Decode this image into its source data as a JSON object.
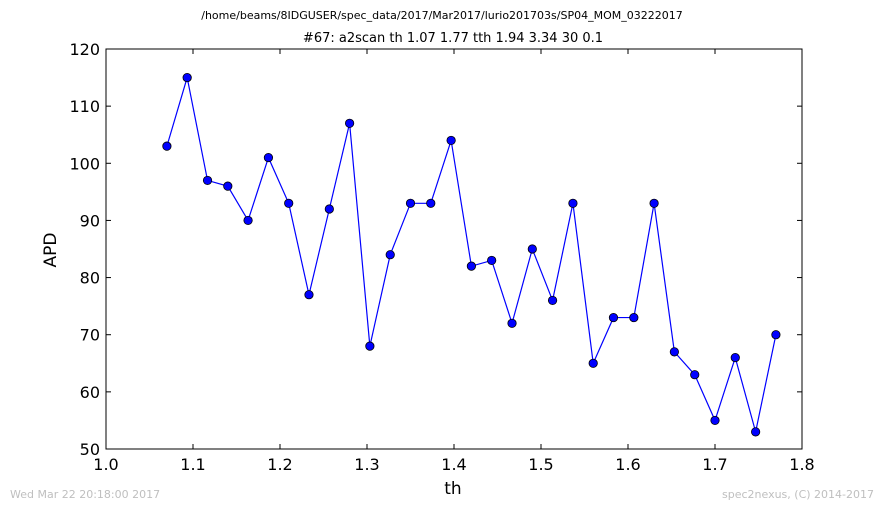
{
  "header": {
    "suptitle": "/home/beams/8IDGUSER/spec_data/2017/Mar2017/lurio201703s/SP04_MOM_03222017"
  },
  "footer": {
    "timestamp": "Wed Mar 22 20:18:00 2017",
    "credit": "spec2nexus, (C) 2014-2017"
  },
  "chart_data": {
    "type": "line",
    "title": "#67: a2scan  th 1.07 1.77  tth 1.94 3.34  30 0.1",
    "xlabel": "th",
    "ylabel": "APD",
    "xlim": [
      1.0,
      1.8
    ],
    "ylim": [
      50,
      120
    ],
    "xticks": [
      "1.0",
      "1.1",
      "1.2",
      "1.3",
      "1.4",
      "1.5",
      "1.6",
      "1.7",
      "1.8"
    ],
    "yticks": [
      "50",
      "60",
      "70",
      "80",
      "90",
      "100",
      "110",
      "120"
    ],
    "grid": false,
    "colors": {
      "line": "#0000ff",
      "marker": "#0000ff"
    },
    "series": [
      {
        "x": [
          1.07,
          1.0933,
          1.1167,
          1.14,
          1.1633,
          1.1867,
          1.21,
          1.2333,
          1.2567,
          1.28,
          1.3033,
          1.3267,
          1.35,
          1.3733,
          1.3967,
          1.42,
          1.4433,
          1.4667,
          1.49,
          1.5133,
          1.5367,
          1.56,
          1.5833,
          1.6067,
          1.63,
          1.6533,
          1.6767,
          1.7,
          1.7233,
          1.7467,
          1.77
        ],
        "y": [
          103,
          115,
          97,
          96,
          90,
          101,
          93,
          77,
          92,
          107,
          68,
          84,
          93,
          93,
          104,
          82,
          83,
          72,
          85,
          76,
          93,
          65,
          73,
          73,
          93,
          67,
          63,
          55,
          66,
          53,
          70
        ]
      }
    ]
  }
}
